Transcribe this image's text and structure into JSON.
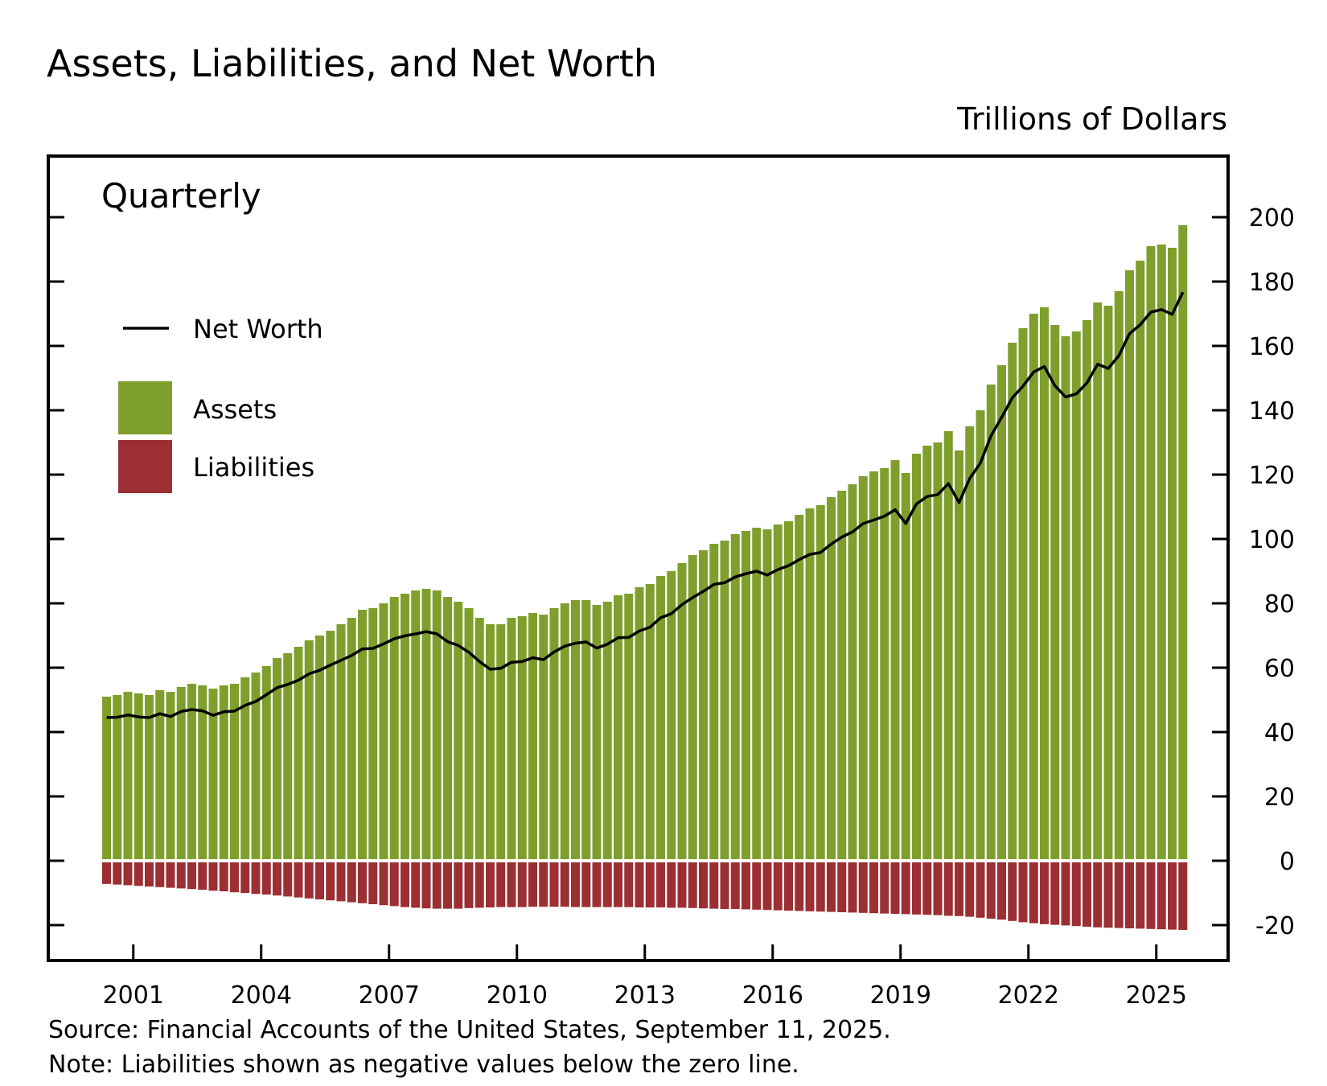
{
  "title": "Assets, Liabilities, and Net Worth",
  "units_label": "Trillions of Dollars",
  "frequency_label": "Quarterly",
  "legend": {
    "net_worth": "Net Worth",
    "assets": "Assets",
    "liabilities": "Liabilities"
  },
  "colors": {
    "assets": "#7f9f2c",
    "liabilities": "#9b2f33",
    "net_worth": "#000000"
  },
  "source": "Source: Financial Accounts of the United States, September 11, 2025.",
  "note": "Note: Liabilities shown as negative values below the zero line.",
  "chart_data": {
    "type": "bar",
    "title": "Assets, Liabilities, and Net Worth",
    "ylabel": "Trillions of Dollars",
    "ylim": [
      -25,
      200
    ],
    "yticks": [
      -20,
      0,
      20,
      40,
      60,
      80,
      100,
      120,
      140,
      160,
      180,
      200
    ],
    "xtick_labels": [
      "2001",
      "2004",
      "2007",
      "2010",
      "2013",
      "2016",
      "2019",
      "2022",
      "2025"
    ],
    "x_start": "2000-Q2",
    "x_end": "2025-Q2",
    "grid": false,
    "legend_position": "top-left",
    "series": [
      {
        "name": "Assets",
        "type": "bar",
        "values": [
          51,
          51.5,
          52.5,
          52,
          51.5,
          53,
          52.5,
          54,
          55,
          54.5,
          53.5,
          54.5,
          55,
          57,
          58.5,
          60.5,
          63,
          64.5,
          66.5,
          68.5,
          70,
          71.5,
          73.5,
          75.5,
          78,
          78.5,
          80,
          82,
          83,
          84,
          84.5,
          84,
          82,
          80.5,
          78.5,
          75.5,
          73.5,
          73.5,
          75.5,
          76,
          77,
          76.5,
          78.5,
          80,
          81,
          81,
          79.5,
          80.5,
          82.5,
          83,
          85,
          86,
          88.5,
          90,
          92.5,
          95,
          96.5,
          98.5,
          99.5,
          101.5,
          102.5,
          103.5,
          103,
          104.5,
          105.5,
          107.5,
          109.5,
          110.5,
          113,
          115,
          117,
          119.5,
          121,
          122,
          124.5,
          120.5,
          126.5,
          129,
          130,
          133.5,
          127.5,
          135,
          140,
          148,
          154,
          161,
          165.5,
          170,
          172,
          166.5,
          163,
          164.5,
          168,
          173.5,
          172.5,
          177,
          183.5,
          186.5,
          191,
          191.5,
          190.5,
          197.5
        ]
      },
      {
        "name": "Liabilities",
        "type": "bar",
        "values": [
          -6.7,
          -6.9,
          -7.1,
          -7.3,
          -7.5,
          -7.7,
          -7.9,
          -8.1,
          -8.3,
          -8.5,
          -8.8,
          -9.0,
          -9.3,
          -9.5,
          -9.8,
          -10.0,
          -10.3,
          -10.6,
          -10.9,
          -11.2,
          -11.5,
          -11.8,
          -12.1,
          -12.4,
          -12.7,
          -13.0,
          -13.3,
          -13.6,
          -13.9,
          -14.1,
          -14.3,
          -14.4,
          -14.4,
          -14.4,
          -14.2,
          -14.1,
          -14.0,
          -13.9,
          -13.9,
          -13.9,
          -13.8,
          -13.8,
          -13.8,
          -13.8,
          -13.9,
          -13.9,
          -13.9,
          -13.9,
          -13.9,
          -13.9,
          -14.0,
          -14.0,
          -14.0,
          -14.1,
          -14.1,
          -14.2,
          -14.3,
          -14.4,
          -14.5,
          -14.5,
          -14.6,
          -14.7,
          -14.8,
          -14.9,
          -15.0,
          -15.1,
          -15.2,
          -15.3,
          -15.4,
          -15.5,
          -15.6,
          -15.7,
          -15.8,
          -15.9,
          -16.0,
          -16.1,
          -16.2,
          -16.3,
          -16.4,
          -16.6,
          -16.7,
          -16.9,
          -17.2,
          -17.5,
          -17.8,
          -18.2,
          -18.6,
          -18.9,
          -19.2,
          -19.4,
          -19.6,
          -19.8,
          -20.0,
          -20.2,
          -20.3,
          -20.4,
          -20.5,
          -20.6,
          -20.7,
          -20.8,
          -20.9,
          -21.0
        ]
      },
      {
        "name": "Net Worth",
        "type": "line",
        "values": [
          44.5,
          44.6,
          45.3,
          44.7,
          44.5,
          45.7,
          44.8,
          46.4,
          47,
          46.6,
          45.2,
          46.3,
          46.5,
          48.3,
          49.5,
          51.6,
          53.8,
          54.8,
          56.1,
          58.1,
          59.2,
          60.8,
          62.3,
          63.8,
          65.8,
          66,
          67.4,
          69,
          69.9,
          70.5,
          71.2,
          70.5,
          68.1,
          66.9,
          64.8,
          61.9,
          59.5,
          59.8,
          61.7,
          61.9,
          63.1,
          62.5,
          64.9,
          66.7,
          67.6,
          68,
          66.1,
          67.3,
          69.3,
          69.4,
          71.4,
          72.6,
          75.5,
          76.8,
          79.6,
          81.8,
          83.7,
          85.9,
          86.4,
          88.2,
          89.2,
          90,
          88.8,
          90.5,
          91.7,
          93.6,
          95.2,
          95.8,
          98.4,
          100.6,
          102.2,
          104.8,
          105.9,
          107.1,
          109.1,
          104.8,
          110.9,
          113.2,
          113.8,
          117.2,
          111.3,
          118.8,
          123.6,
          132.1,
          137.8,
          143.9,
          147.5,
          151.9,
          153.6,
          147.6,
          144.1,
          145.1,
          148.5,
          154.3,
          153,
          157,
          163.8,
          166.6,
          170.5,
          171.3,
          169.8,
          176.7
        ]
      }
    ]
  }
}
